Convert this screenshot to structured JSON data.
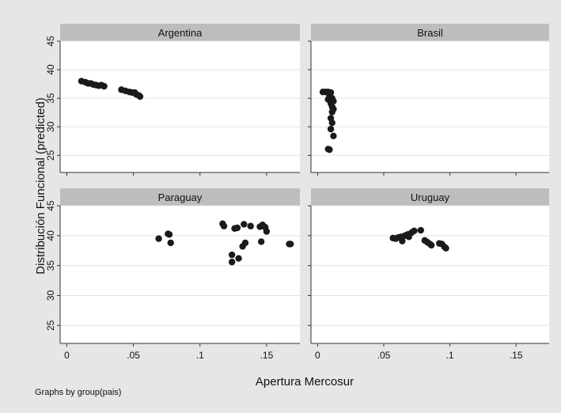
{
  "figure": {
    "xlabel": "Apertura Mercosur",
    "ylabel": "Distribución Funcional (predicted)",
    "note": "Graphs by group(pais)"
  },
  "chart_data": [
    {
      "type": "scatter",
      "title": "Argentina",
      "xlim": [
        -0.005,
        0.175
      ],
      "ylim": [
        22,
        45
      ],
      "x_ticks": [
        "0",
        ".05",
        ".1",
        ".15"
      ],
      "y_ticks": [
        "25",
        "30",
        "35",
        "40",
        "45"
      ],
      "grid": true,
      "color": "#1a1a1a",
      "points": [
        [
          0.011,
          38.0
        ],
        [
          0.014,
          37.8
        ],
        [
          0.016,
          37.6
        ],
        [
          0.018,
          37.6
        ],
        [
          0.02,
          37.4
        ],
        [
          0.022,
          37.3
        ],
        [
          0.024,
          37.2
        ],
        [
          0.026,
          37.3
        ],
        [
          0.028,
          37.1
        ],
        [
          0.041,
          36.5
        ],
        [
          0.044,
          36.3
        ],
        [
          0.047,
          36.1
        ],
        [
          0.049,
          36.0
        ],
        [
          0.051,
          36.0
        ],
        [
          0.052,
          35.7
        ],
        [
          0.054,
          35.5
        ],
        [
          0.055,
          35.3
        ]
      ]
    },
    {
      "type": "scatter",
      "title": "Brasil",
      "xlim": [
        -0.005,
        0.175
      ],
      "ylim": [
        22,
        45
      ],
      "x_ticks": [
        "0",
        ".05",
        ".1",
        ".15"
      ],
      "y_ticks": [
        "25",
        "30",
        "35",
        "40",
        "45"
      ],
      "grid": true,
      "color": "#1a1a1a",
      "points": [
        [
          0.004,
          36.1
        ],
        [
          0.006,
          36.1
        ],
        [
          0.008,
          36.1
        ],
        [
          0.01,
          36.0
        ],
        [
          0.009,
          35.4
        ],
        [
          0.011,
          35.0
        ],
        [
          0.008,
          34.8
        ],
        [
          0.012,
          34.5
        ],
        [
          0.01,
          34.1
        ],
        [
          0.011,
          33.5
        ],
        [
          0.012,
          33.1
        ],
        [
          0.011,
          32.6
        ],
        [
          0.01,
          31.5
        ],
        [
          0.011,
          30.7
        ],
        [
          0.01,
          29.6
        ],
        [
          0.012,
          28.4
        ],
        [
          0.008,
          26.1
        ],
        [
          0.009,
          26.0
        ]
      ]
    },
    {
      "type": "scatter",
      "title": "Paraguay",
      "xlim": [
        -0.005,
        0.175
      ],
      "ylim": [
        22,
        45
      ],
      "x_ticks": [
        "0",
        ".05",
        ".1",
        ".15"
      ],
      "y_ticks": [
        "25",
        "30",
        "35",
        "40",
        "45"
      ],
      "grid": true,
      "color": "#1a1a1a",
      "points": [
        [
          0.069,
          39.5
        ],
        [
          0.076,
          40.3
        ],
        [
          0.077,
          40.2
        ],
        [
          0.078,
          38.8
        ],
        [
          0.117,
          42.0
        ],
        [
          0.118,
          41.6
        ],
        [
          0.124,
          36.8
        ],
        [
          0.124,
          35.6
        ],
        [
          0.126,
          41.2
        ],
        [
          0.128,
          41.3
        ],
        [
          0.129,
          36.2
        ],
        [
          0.132,
          38.2
        ],
        [
          0.133,
          41.9
        ],
        [
          0.134,
          38.8
        ],
        [
          0.138,
          41.6
        ],
        [
          0.145,
          41.5
        ],
        [
          0.146,
          39.0
        ],
        [
          0.147,
          41.8
        ],
        [
          0.149,
          41.4
        ],
        [
          0.15,
          40.7
        ],
        [
          0.167,
          38.6
        ],
        [
          0.168,
          38.6
        ]
      ]
    },
    {
      "type": "scatter",
      "title": "Uruguay",
      "xlim": [
        -0.005,
        0.175
      ],
      "ylim": [
        22,
        45
      ],
      "x_ticks": [
        "0",
        ".05",
        ".1",
        ".15"
      ],
      "y_ticks": [
        "25",
        "30",
        "35",
        "40",
        "45"
      ],
      "grid": true,
      "color": "#1a1a1a",
      "points": [
        [
          0.057,
          39.6
        ],
        [
          0.059,
          39.5
        ],
        [
          0.061,
          39.7
        ],
        [
          0.063,
          39.8
        ],
        [
          0.064,
          39.1
        ],
        [
          0.066,
          40.0
        ],
        [
          0.068,
          40.2
        ],
        [
          0.069,
          39.8
        ],
        [
          0.071,
          40.5
        ],
        [
          0.073,
          40.8
        ],
        [
          0.078,
          40.9
        ],
        [
          0.081,
          39.2
        ],
        [
          0.083,
          38.9
        ],
        [
          0.085,
          38.6
        ],
        [
          0.086,
          38.4
        ],
        [
          0.092,
          38.7
        ],
        [
          0.094,
          38.6
        ],
        [
          0.096,
          38.1
        ],
        [
          0.097,
          37.9
        ]
      ]
    }
  ]
}
